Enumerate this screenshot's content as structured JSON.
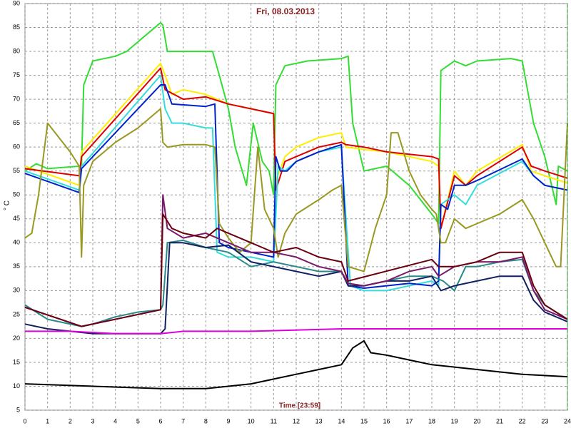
{
  "chart_data": {
    "type": "line",
    "title": "Fri, 08.03.2013",
    "x_label": "Time [23:59]",
    "y_label": "° C",
    "xlim": [
      0,
      24
    ],
    "ylim": [
      5,
      90
    ],
    "xticks": [
      0,
      1,
      2,
      3,
      4,
      5,
      6,
      7,
      8,
      9,
      10,
      11,
      12,
      13,
      14,
      15,
      16,
      17,
      18,
      19,
      20,
      21,
      22,
      23,
      24
    ],
    "yticks": [
      5,
      10,
      15,
      20,
      25,
      30,
      35,
      40,
      45,
      50,
      55,
      60,
      65,
      70,
      75,
      80,
      85,
      90
    ],
    "grid": true,
    "series": [
      {
        "color": "#33dd33",
        "x": [
          0,
          0.5,
          1,
          2.4,
          2.5,
          2.6,
          3,
          4,
          4.5,
          5,
          5.5,
          6,
          6.1,
          6.3,
          7,
          8.3,
          8.6,
          9,
          9.3,
          9.8,
          10.1,
          10.5,
          10.8,
          11,
          11.1,
          11.5,
          12.5,
          14,
          14.3,
          14.5,
          15,
          16,
          17,
          18,
          18.3,
          18.4,
          19,
          19.5,
          20,
          21.5,
          22,
          22.5,
          23,
          23.5,
          23.6,
          24
        ],
        "values": [
          55,
          56.5,
          55.5,
          56,
          56,
          73,
          78,
          79,
          80,
          82,
          84,
          86,
          85.5,
          80,
          80,
          80,
          75,
          68,
          60,
          52,
          65,
          57,
          55,
          50,
          73,
          77,
          78,
          78.5,
          79,
          65,
          55,
          56,
          52,
          46,
          44,
          76,
          78,
          77,
          78,
          78.5,
          78,
          65,
          58,
          48,
          56,
          55
        ]
      },
      {
        "color": "#ffee00",
        "x": [
          0,
          2.4,
          2.5,
          6,
          6.2,
          6.5,
          7,
          8,
          9,
          10,
          11,
          11.1,
          11.5,
          12,
          13,
          14,
          14.2,
          15,
          16,
          17,
          18,
          18.3,
          18.4,
          19,
          19.5,
          20,
          22,
          22.4,
          23,
          24
        ],
        "values": [
          56,
          52,
          59,
          77.5,
          75,
          71,
          72,
          71,
          69,
          68,
          67,
          53,
          58,
          60,
          62,
          63,
          60,
          59.5,
          59,
          58,
          57,
          56,
          43,
          55,
          52,
          55,
          60.5,
          55,
          54,
          52.5
        ]
      },
      {
        "color": "#dd0000",
        "x": [
          0,
          2.4,
          2.5,
          6,
          6.2,
          7,
          8,
          9,
          10,
          11,
          11.1,
          11.5,
          12,
          13,
          14,
          14.2,
          15,
          16,
          17,
          18,
          18.3,
          18.4,
          19,
          19.5,
          20,
          22,
          22.4,
          23,
          24
        ],
        "values": [
          55.5,
          54,
          58,
          76.5,
          72,
          70,
          70.5,
          69,
          68,
          67,
          51,
          57,
          58,
          60,
          61,
          60.5,
          60,
          59,
          58.5,
          58,
          57.5,
          43,
          54,
          52,
          54,
          60,
          56,
          55,
          53.5
        ]
      },
      {
        "color": "#33dddd",
        "x": [
          0,
          2.4,
          2.5,
          6,
          6.2,
          6.5,
          7,
          8,
          8.3,
          8.5,
          9,
          10,
          11,
          11.2,
          11.5,
          12,
          13,
          14,
          14.2,
          14.4,
          15,
          16,
          17,
          18,
          18.3,
          18.4,
          19,
          19.5,
          20,
          22,
          22.5,
          23,
          24
        ],
        "values": [
          55,
          51,
          56,
          75,
          68,
          65,
          65,
          64,
          64,
          38,
          37,
          37,
          36,
          56,
          55,
          57,
          59,
          60,
          45,
          31,
          30,
          30,
          31,
          32,
          31,
          48,
          50,
          48,
          52,
          57,
          54,
          52,
          51
        ]
      },
      {
        "color": "#0022cc",
        "x": [
          0,
          2.4,
          2.5,
          6,
          6.2,
          6.5,
          8,
          8.4,
          8.6,
          9,
          10,
          11,
          11.1,
          11.3,
          11.6,
          12,
          13,
          14,
          14.3,
          15,
          16,
          17,
          18,
          18.3,
          18.4,
          18.7,
          19,
          19.5,
          20,
          22,
          22.5,
          23,
          24
        ],
        "values": [
          54.5,
          50.5,
          55.5,
          73,
          73,
          69,
          68.5,
          69,
          40,
          39,
          38,
          37,
          58,
          55,
          55,
          57,
          59,
          60.5,
          31,
          30.5,
          31,
          31.5,
          31,
          32,
          48,
          47,
          52,
          52,
          53,
          57.5,
          54,
          52,
          51
        ]
      },
      {
        "color": "#999922",
        "x": [
          0,
          0.3,
          0.6,
          1,
          1.5,
          2,
          2.4,
          2.5,
          2.6,
          3,
          4,
          5,
          6,
          6.1,
          6.3,
          7,
          8,
          8.4,
          8.6,
          9,
          9.5,
          10,
          10.3,
          10.6,
          11,
          11.2,
          11.5,
          12,
          13,
          13.6,
          14,
          14.3,
          15,
          15.5,
          16,
          16.2,
          16.5,
          17,
          17.5,
          18,
          18.2,
          18.4,
          18.6,
          19,
          19.5,
          20,
          21,
          22,
          22.5,
          23,
          23.5,
          23.7,
          24
        ],
        "values": [
          41,
          42,
          50,
          65,
          62,
          59,
          56,
          37,
          52,
          57,
          61,
          64,
          68,
          61,
          60,
          60.5,
          60.5,
          60,
          44,
          41,
          38,
          40,
          60,
          47,
          43,
          37,
          42,
          46,
          49,
          51,
          52,
          35,
          34,
          43,
          50,
          63,
          63,
          55,
          50,
          47,
          46,
          40,
          40,
          45,
          43,
          44,
          46,
          49,
          45,
          40,
          35,
          35,
          65
        ]
      },
      {
        "color": "#2a8a8a",
        "x": [
          0,
          1,
          2.5,
          3,
          4,
          5,
          6,
          6.1,
          6.3,
          7,
          8,
          9,
          10,
          11,
          12,
          13,
          14,
          14.3,
          15,
          16,
          17,
          18,
          18.5,
          19,
          19.5,
          20,
          21,
          22,
          22.5,
          23,
          24
        ],
        "values": [
          27,
          24,
          22.5,
          23,
          24.5,
          25.5,
          26,
          27,
          40,
          40.5,
          39,
          38,
          35,
          36,
          35,
          34,
          34,
          31,
          31,
          32,
          33,
          33,
          32,
          30,
          35,
          35,
          36,
          36.5,
          30,
          27,
          24
        ]
      },
      {
        "color": "#102060",
        "x": [
          0,
          1,
          2,
          3,
          5,
          6,
          6.2,
          6.4,
          7,
          8,
          9,
          10,
          11,
          12,
          13,
          14,
          14.3,
          15,
          16,
          17,
          18,
          18.4,
          19,
          20,
          21,
          22,
          22.5,
          23,
          24
        ],
        "values": [
          23,
          22,
          21.5,
          21,
          21,
          21,
          22,
          40,
          40,
          39,
          39.5,
          36,
          35,
          34,
          33,
          34,
          31,
          31,
          32,
          32,
          33,
          30,
          31,
          32,
          33,
          33,
          28,
          25.5,
          23.5
        ]
      },
      {
        "color": "#7a1a6a",
        "x": [
          0,
          2.5,
          6,
          6.1,
          6.3,
          7,
          8,
          9,
          10,
          11,
          12,
          13,
          14,
          14.3,
          15,
          16,
          17,
          18,
          18.3,
          19,
          20,
          21,
          22,
          22.5,
          23,
          24
        ],
        "values": [
          26.5,
          22.5,
          26,
          50,
          43,
          41,
          42,
          40,
          38,
          38,
          37,
          35,
          34,
          31.5,
          31,
          32,
          34,
          35,
          33,
          35,
          36,
          36,
          37,
          30,
          26,
          24
        ]
      },
      {
        "color": "#6a0010",
        "x": [
          0,
          2.5,
          6,
          6.1,
          6.5,
          7,
          8,
          8.5,
          9,
          10,
          11,
          12,
          13,
          14,
          14.3,
          18,
          18.3,
          19,
          20,
          21,
          22,
          22.5,
          23,
          24
        ],
        "values": [
          26.5,
          22.5,
          26,
          46,
          43,
          42,
          41,
          43,
          42,
          40,
          38,
          39,
          37,
          36,
          32,
          36.5,
          35,
          35,
          36,
          38,
          38,
          31,
          27,
          24
        ]
      },
      {
        "color": "#dd00dd",
        "x": [
          0,
          2,
          4,
          6,
          7,
          10,
          14,
          18,
          20,
          24
        ],
        "values": [
          21.5,
          21.5,
          21,
          21,
          21.5,
          21.5,
          22,
          22,
          22,
          22
        ]
      },
      {
        "color": "#000000",
        "x": [
          0,
          3,
          6,
          7,
          8,
          9,
          10,
          11,
          12,
          13,
          14,
          14.5,
          15,
          15.3,
          16,
          17,
          18,
          19,
          20,
          22,
          24
        ],
        "values": [
          10.5,
          10,
          9.5,
          9.5,
          9.5,
          10,
          10.5,
          11.5,
          12.5,
          13.5,
          14.5,
          18,
          19.5,
          17,
          16.5,
          15.5,
          14.5,
          14,
          13.5,
          12.5,
          12
        ]
      }
    ]
  }
}
